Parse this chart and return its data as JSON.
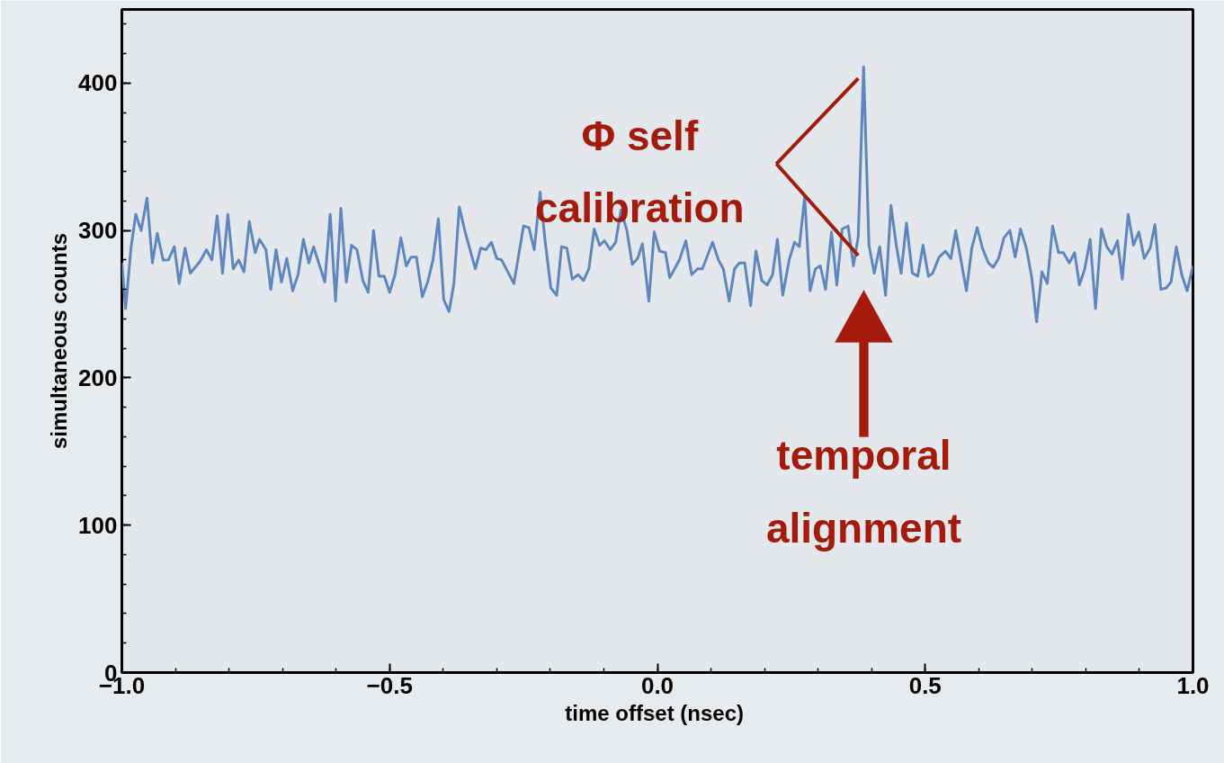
{
  "chart_data": {
    "type": "line",
    "xlabel": "time offset  (nsec)",
    "ylabel": "simultaneous counts",
    "xlim": [
      -1.0,
      1.0
    ],
    "ylim": [
      0,
      450
    ],
    "xticks": [
      {
        "value": -1.0,
        "label": "−1.0"
      },
      {
        "value": -0.5,
        "label": "−0.5"
      },
      {
        "value": 0.0,
        "label": "0.0"
      },
      {
        "value": 0.5,
        "label": "0.5"
      },
      {
        "value": 1.0,
        "label": "1.0"
      }
    ],
    "yticks": [
      0,
      100,
      200,
      300,
      400
    ],
    "grid": false,
    "marker": "none",
    "line_style": "solid",
    "annotations": [
      {
        "text": "Φ self\ncalibration",
        "x": 0.375,
        "y": 283
      },
      "temporal\nalignment"
    ],
    "series": [
      {
        "color": "#5f87bf",
        "x": [
          -1.0,
          -0.993,
          -0.983,
          -0.974,
          -0.964,
          -0.953,
          -0.943,
          -0.934,
          -0.923,
          -0.913,
          -0.902,
          -0.893,
          -0.882,
          -0.872,
          -0.854,
          -0.842,
          -0.832,
          -0.822,
          -0.812,
          -0.802,
          -0.792,
          -0.782,
          -0.772,
          -0.762,
          -0.751,
          -0.743,
          -0.731,
          -0.722,
          -0.712,
          -0.702,
          -0.692,
          -0.681,
          -0.671,
          -0.661,
          -0.651,
          -0.642,
          -0.621,
          -0.611,
          -0.601,
          -0.591,
          -0.581,
          -0.571,
          -0.561,
          -0.55,
          -0.54,
          -0.53,
          -0.52,
          -0.51,
          -0.5,
          -0.49,
          -0.479,
          -0.469,
          -0.46,
          -0.45,
          -0.439,
          -0.429,
          -0.419,
          -0.409,
          -0.399,
          -0.389,
          -0.38,
          -0.37,
          -0.359,
          -0.34,
          -0.33,
          -0.32,
          -0.31,
          -0.3,
          -0.291,
          -0.268,
          -0.25,
          -0.24,
          -0.23,
          -0.219,
          -0.21,
          -0.199,
          -0.188,
          -0.179,
          -0.169,
          -0.159,
          -0.148,
          -0.138,
          -0.128,
          -0.118,
          -0.108,
          -0.099,
          -0.088,
          -0.078,
          -0.068,
          -0.057,
          -0.047,
          -0.037,
          -0.028,
          -0.016,
          -0.006,
          0.004,
          0.015,
          0.023,
          0.041,
          0.053,
          0.064,
          0.075,
          0.084,
          0.103,
          0.114,
          0.123,
          0.134,
          0.144,
          0.153,
          0.163,
          0.174,
          0.184,
          0.195,
          0.205,
          0.215,
          0.224,
          0.234,
          0.246,
          0.256,
          0.265,
          0.275,
          0.285,
          0.295,
          0.304,
          0.314,
          0.325,
          0.335,
          0.345,
          0.356,
          0.366,
          0.375,
          0.385,
          0.395,
          0.405,
          0.415,
          0.426,
          0.436,
          0.446,
          0.455,
          0.465,
          0.476,
          0.486,
          0.496,
          0.506,
          0.514,
          0.526,
          0.538,
          0.548,
          0.557,
          0.577,
          0.587,
          0.597,
          0.607,
          0.618,
          0.627,
          0.637,
          0.647,
          0.658,
          0.668,
          0.678,
          0.689,
          0.699,
          0.708,
          0.718,
          0.728,
          0.738,
          0.749,
          0.758,
          0.769,
          0.779,
          0.788,
          0.798,
          0.808,
          0.818,
          0.829,
          0.839,
          0.849,
          0.859,
          0.868,
          0.879,
          0.889,
          0.899,
          0.909,
          0.92,
          0.929,
          0.94,
          0.95,
          0.959,
          0.969,
          0.979,
          0.989,
          1.0
        ],
        "values": [
          278,
          247,
          288,
          311,
          300,
          322,
          278,
          298,
          280,
          280,
          289,
          264,
          288,
          271,
          279,
          287,
          280,
          310,
          271,
          311,
          274,
          280,
          272,
          306,
          285,
          294,
          287,
          260,
          287,
          265,
          281,
          259,
          270,
          294,
          278,
          289,
          265,
          311,
          252,
          315,
          265,
          290,
          287,
          266,
          258,
          300,
          269,
          269,
          258,
          270,
          295,
          276,
          282,
          282,
          255,
          265,
          280,
          308,
          253,
          245,
          264,
          316,
          299,
          274,
          288,
          287,
          292,
          281,
          280,
          264,
          303,
          302,
          287,
          326,
          294,
          261,
          256,
          289,
          288,
          267,
          270,
          266,
          274,
          301,
          290,
          293,
          287,
          292,
          314,
          300,
          277,
          281,
          291,
          252,
          299,
          286,
          285,
          268,
          280,
          293,
          270,
          274,
          274,
          292,
          280,
          274,
          252,
          274,
          278,
          278,
          249,
          286,
          266,
          263,
          270,
          294,
          256,
          280,
          292,
          289,
          323,
          259,
          274,
          276,
          260,
          299,
          263,
          301,
          303,
          276,
          296,
          411,
          290,
          271,
          289,
          256,
          317,
          290,
          271,
          305,
          271,
          269,
          290,
          269,
          271,
          282,
          286,
          281,
          300,
          259,
          288,
          302,
          288,
          278,
          275,
          281,
          295,
          300,
          282,
          301,
          288,
          268,
          238,
          272,
          264,
          303,
          285,
          285,
          278,
          285,
          263,
          274,
          294,
          247,
          301,
          289,
          284,
          293,
          267,
          311,
          290,
          299,
          281,
          288,
          304,
          260,
          261,
          265,
          289,
          270,
          259,
          276
        ]
      }
    ]
  }
}
